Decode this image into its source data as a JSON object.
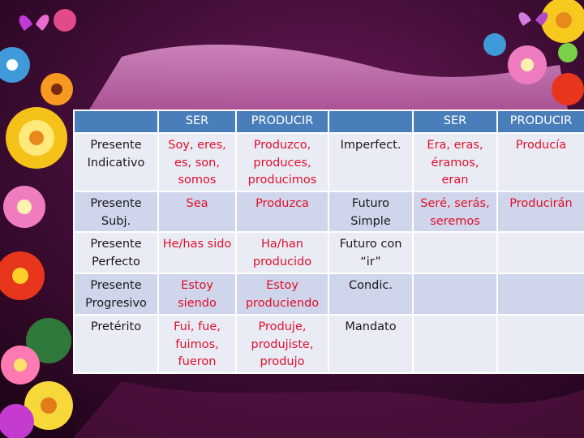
{
  "table": {
    "headers": [
      "",
      "SER",
      "PRODUCIR",
      "",
      "SER",
      "PRODUCIR"
    ],
    "rows": [
      [
        "Presente Indicativo",
        "Soy, eres, es, son, somos",
        "Produzco, produces, producimos",
        "Imperfect.",
        "Era, eras, éramos, eran",
        "Producía"
      ],
      [
        "Presente Subj.",
        "Sea",
        "Produzca",
        "Futuro Simple",
        "Seré, serás, seremos",
        "Producirán"
      ],
      [
        "Presente Perfecto",
        "He/has sido",
        "Ha/han producido",
        "Futuro con “ir”",
        "",
        ""
      ],
      [
        "Presente Progresivo",
        "Estoy siendo",
        "Estoy produciendo",
        "Condic.",
        "",
        ""
      ],
      [
        "Pretérito",
        "Fui, fue, fuimos, fueron",
        "Produje, produjiste, produjo",
        "Mandato",
        "",
        ""
      ]
    ]
  },
  "colors": {
    "header_bg": "#4a7ebb",
    "row_light": "#e9ebf5",
    "row_dark": "#cfd5ea",
    "conjugation_text": "#e0102a",
    "background": "#3a0a2e"
  }
}
